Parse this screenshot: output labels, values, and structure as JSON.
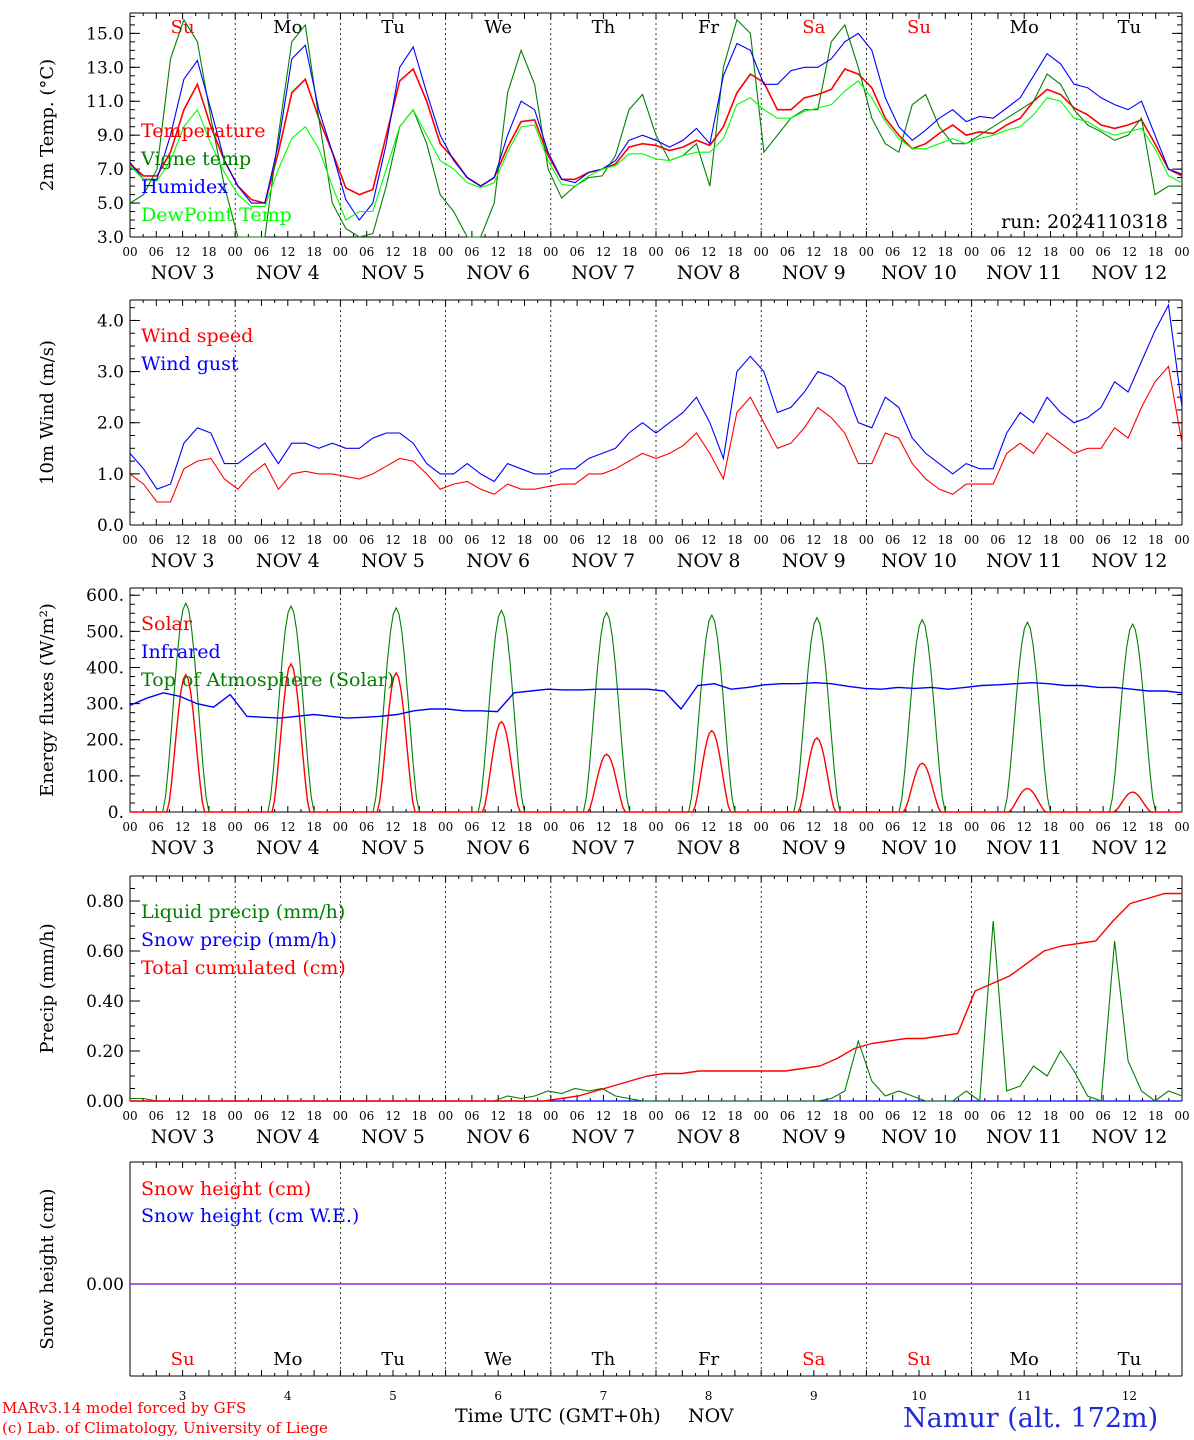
{
  "chart_data": [
    {
      "type": "line",
      "ylabel": "2m Temp. (°C)",
      "ylim": [
        3.0,
        16.2
      ],
      "yticks": [
        "3.0",
        "5.0",
        "7.0",
        "9.0",
        "11.0",
        "13.0",
        "15.0"
      ],
      "run_label": "run: 2024110318",
      "day_names": [
        "Su",
        "Mo",
        "Tu",
        "We",
        "Th",
        "Fr",
        "Sa",
        "Su",
        "Mo",
        "Tu"
      ],
      "series": [
        {
          "name": "Temperature",
          "color": "#ff0000",
          "values": [
            7.3,
            6.6,
            6.6,
            8.0,
            10.5,
            12.0,
            9.5,
            7.5,
            6.0,
            5.2,
            5.0,
            8.0,
            11.5,
            12.3,
            10.0,
            8.0,
            5.9,
            5.5,
            5.8,
            9.0,
            12.2,
            12.9,
            11.0,
            8.5,
            7.6,
            6.5,
            6.0,
            6.5,
            8.3,
            9.8,
            9.9,
            7.8,
            6.4,
            6.4,
            6.8,
            7.0,
            7.3,
            8.3,
            8.5,
            8.4,
            8.1,
            8.3,
            8.7,
            8.4,
            9.5,
            11.5,
            12.6,
            12.1,
            10.5,
            10.5,
            11.2,
            11.4,
            11.7,
            12.9,
            12.6,
            11.8,
            10.0,
            9.0,
            8.2,
            8.5,
            9.1,
            9.6,
            9.0,
            9.2,
            9.1,
            9.6,
            10.0,
            11.0,
            11.7,
            11.4,
            10.6,
            10.2,
            9.6,
            9.4,
            9.6,
            9.9,
            8.5,
            7.0,
            6.6
          ]
        },
        {
          "name": "Vigne temp",
          "color": "#008000",
          "values": [
            5.0,
            5.5,
            7.0,
            13.5,
            15.8,
            14.5,
            10.0,
            6.0,
            2.8,
            2.5,
            2.5,
            9.0,
            14.5,
            15.5,
            10.0,
            5.0,
            3.5,
            2.0,
            3.2,
            6.0,
            9.5,
            10.5,
            8.5,
            5.5,
            4.5,
            3.0,
            2.5,
            5.0,
            11.5,
            14.0,
            12.0,
            7.0,
            5.3,
            6.0,
            6.5,
            6.6,
            7.8,
            10.5,
            11.4,
            9.0,
            7.5,
            7.8,
            8.5,
            6.0,
            13.0,
            15.8,
            15.0,
            8.0,
            9.0,
            10.0,
            10.5,
            10.5,
            14.5,
            15.5,
            13.0,
            10.0,
            8.5,
            8.0,
            10.8,
            11.4,
            9.5,
            8.5,
            8.5,
            9.0,
            9.5,
            10.0,
            10.5,
            11.0,
            12.6,
            12.0,
            10.5,
            9.6,
            9.2,
            8.7,
            9.0,
            10.0,
            5.5,
            6.0,
            6.0
          ]
        },
        {
          "name": "Humidex",
          "color": "#0000ff",
          "values": [
            7.4,
            6.4,
            6.4,
            9.0,
            12.3,
            13.4,
            10.5,
            7.5,
            6.0,
            5.0,
            5.0,
            8.5,
            13.5,
            14.3,
            10.5,
            8.0,
            5.2,
            4.0,
            5.0,
            8.5,
            13.0,
            14.2,
            11.5,
            9.0,
            7.5,
            6.5,
            6.0,
            6.5,
            9.0,
            11.0,
            10.5,
            8.0,
            6.4,
            6.2,
            6.8,
            7.0,
            7.5,
            8.7,
            9.0,
            8.7,
            8.3,
            8.7,
            9.4,
            8.5,
            12.5,
            14.4,
            14.0,
            12.0,
            12.0,
            12.8,
            13.0,
            13.0,
            13.5,
            14.5,
            15.0,
            14.0,
            11.2,
            9.5,
            8.7,
            9.3,
            10.0,
            10.5,
            9.8,
            10.1,
            10.0,
            10.6,
            11.2,
            12.5,
            13.8,
            13.2,
            12.0,
            11.8,
            11.2,
            10.8,
            10.5,
            11.0,
            9.0,
            7.0,
            6.7
          ]
        },
        {
          "name": "DewPoint Temp",
          "color": "#00ff00",
          "values": [
            7.2,
            6.4,
            6.3,
            7.5,
            9.5,
            10.5,
            8.5,
            6.8,
            5.5,
            4.8,
            4.8,
            7.0,
            8.8,
            9.5,
            8.2,
            6.0,
            4.0,
            4.5,
            4.5,
            7.0,
            9.5,
            10.5,
            9.0,
            7.5,
            7.0,
            6.2,
            5.9,
            6.2,
            8.0,
            9.5,
            9.6,
            7.5,
            6.1,
            6.0,
            6.6,
            7.0,
            7.2,
            7.9,
            7.9,
            7.6,
            7.5,
            7.8,
            8.0,
            8.0,
            8.8,
            10.8,
            11.2,
            10.5,
            10.0,
            10.0,
            10.4,
            10.6,
            10.8,
            11.6,
            12.2,
            11.2,
            9.8,
            8.8,
            8.2,
            8.2,
            8.5,
            8.8,
            8.5,
            8.8,
            9.0,
            9.3,
            9.5,
            10.2,
            11.2,
            11.0,
            10.0,
            9.8,
            9.3,
            9.0,
            9.2,
            9.4,
            8.2,
            6.6,
            6.2
          ]
        }
      ]
    },
    {
      "type": "line",
      "ylabel": "10m Wind (m/s)",
      "ylim": [
        0.0,
        4.4
      ],
      "yticks": [
        "0.0",
        "1.0",
        "2.0",
        "3.0",
        "4.0"
      ],
      "series": [
        {
          "name": "Wind speed",
          "color": "#ff0000",
          "values": [
            1.0,
            0.8,
            0.45,
            0.45,
            1.1,
            1.25,
            1.3,
            0.9,
            0.7,
            1.0,
            1.2,
            0.7,
            1.0,
            1.05,
            1.0,
            1.0,
            0.95,
            0.9,
            1.0,
            1.15,
            1.3,
            1.25,
            1.0,
            0.7,
            0.8,
            0.85,
            0.7,
            0.6,
            0.8,
            0.7,
            0.7,
            0.75,
            0.8,
            0.8,
            1.0,
            1.0,
            1.1,
            1.25,
            1.4,
            1.3,
            1.4,
            1.55,
            1.8,
            1.4,
            0.9,
            2.2,
            2.5,
            2.0,
            1.5,
            1.6,
            1.9,
            2.3,
            2.1,
            1.8,
            1.2,
            1.2,
            1.8,
            1.7,
            1.2,
            0.9,
            0.7,
            0.6,
            0.8,
            0.8,
            0.8,
            1.4,
            1.6,
            1.4,
            1.8,
            1.6,
            1.4,
            1.5,
            1.5,
            1.9,
            1.7,
            2.3,
            2.8,
            3.1,
            1.6
          ]
        },
        {
          "name": "Wind gust",
          "color": "#0000ff",
          "values": [
            1.4,
            1.1,
            0.7,
            0.8,
            1.6,
            1.9,
            1.8,
            1.2,
            1.2,
            1.4,
            1.6,
            1.2,
            1.6,
            1.6,
            1.5,
            1.6,
            1.5,
            1.5,
            1.7,
            1.8,
            1.8,
            1.6,
            1.2,
            1.0,
            1.0,
            1.2,
            1.0,
            0.85,
            1.2,
            1.1,
            1.0,
            1.0,
            1.1,
            1.1,
            1.3,
            1.4,
            1.5,
            1.8,
            2.0,
            1.8,
            2.0,
            2.2,
            2.5,
            2.0,
            1.3,
            3.0,
            3.3,
            3.0,
            2.2,
            2.3,
            2.6,
            3.0,
            2.9,
            2.7,
            2.0,
            1.9,
            2.5,
            2.3,
            1.7,
            1.4,
            1.2,
            1.0,
            1.2,
            1.1,
            1.1,
            1.8,
            2.2,
            2.0,
            2.5,
            2.2,
            2.0,
            2.1,
            2.3,
            2.8,
            2.6,
            3.2,
            3.8,
            4.3,
            2.3
          ]
        }
      ]
    },
    {
      "type": "line",
      "ylabel": "Energy fluxes (W/m²)",
      "ylim": [
        0,
        620
      ],
      "yticks": [
        "0.",
        "100.",
        "200.",
        "300.",
        "400.",
        "500.",
        "600."
      ],
      "series": [
        {
          "name": "Solar",
          "color": "#ff0000",
          "peaks": [
            380,
            410,
            385,
            250,
            160,
            225,
            205,
            135,
            65,
            55
          ]
        },
        {
          "name": "Infrared",
          "color": "#0000ff",
          "values": [
            295,
            315,
            330,
            320,
            300,
            290,
            325,
            265,
            262,
            260,
            265,
            270,
            265,
            260,
            262,
            265,
            270,
            280,
            285,
            285,
            280,
            280,
            278,
            330,
            335,
            340,
            338,
            338,
            340,
            340,
            340,
            340,
            335,
            285,
            350,
            355,
            340,
            345,
            352,
            355,
            355,
            358,
            355,
            348,
            342,
            340,
            345,
            342,
            345,
            340,
            345,
            350,
            352,
            355,
            358,
            355,
            350,
            350,
            345,
            345,
            340,
            335,
            335,
            330
          ]
        },
        {
          "name": "Top of Atmosphere (Solar)",
          "color": "#008000",
          "peaks": [
            578,
            570,
            565,
            558,
            552,
            545,
            538,
            532,
            525,
            520
          ]
        }
      ]
    },
    {
      "type": "line",
      "ylabel": "Precip (mm/h)",
      "ylim": [
        0,
        0.9
      ],
      "yticks": [
        "0.00",
        "0.20",
        "0.40",
        "0.60",
        "0.80"
      ],
      "series": [
        {
          "name": "Liquid precip (mm/h)",
          "color": "#008000",
          "values": [
            0.01,
            0.01,
            0.0,
            0.0,
            0.0,
            0.0,
            0.0,
            0.0,
            0.0,
            0.0,
            0.0,
            0.0,
            0.0,
            0.0,
            0.0,
            0.0,
            0.0,
            0.0,
            0.0,
            0.0,
            0.0,
            0.0,
            0.0,
            0.0,
            0.0,
            0.0,
            0.0,
            0.0,
            0.02,
            0.01,
            0.02,
            0.04,
            0.03,
            0.05,
            0.04,
            0.05,
            0.02,
            0.01,
            0.0,
            0.0,
            0.0,
            0.0,
            0.0,
            0.0,
            0.0,
            0.0,
            0.0,
            0.0,
            0.0,
            0.0,
            0.0,
            0.0,
            0.01,
            0.04,
            0.24,
            0.08,
            0.02,
            0.04,
            0.02,
            0.0,
            0.0,
            0.0,
            0.04,
            0.0,
            0.72,
            0.04,
            0.06,
            0.14,
            0.1,
            0.2,
            0.12,
            0.02,
            0.0,
            0.64,
            0.16,
            0.04,
            0.0,
            0.04,
            0.02
          ]
        },
        {
          "name": "Snow precip (mm/h)",
          "color": "#0000ff",
          "values": [
            0.0,
            0.0
          ]
        },
        {
          "name": "Total cumulated (cm)",
          "color": "#ff0000",
          "values": [
            0.0,
            0.0,
            0.0,
            0.0,
            0.0,
            0.0,
            0.0,
            0.0,
            0.0,
            0.0,
            0.0,
            0.0,
            0.0,
            0.0,
            0.0,
            0.0,
            0.0,
            0.0,
            0.0,
            0.0,
            0.0,
            0.0,
            0.0,
            0.0,
            0.0,
            0.01,
            0.02,
            0.04,
            0.06,
            0.08,
            0.1,
            0.11,
            0.11,
            0.12,
            0.12,
            0.12,
            0.12,
            0.12,
            0.12,
            0.13,
            0.14,
            0.17,
            0.21,
            0.23,
            0.24,
            0.25,
            0.25,
            0.26,
            0.27,
            0.44,
            0.47,
            0.5,
            0.55,
            0.6,
            0.62,
            0.63,
            0.64,
            0.72,
            0.79,
            0.81,
            0.83,
            0.83
          ]
        }
      ]
    },
    {
      "type": "line",
      "ylabel": "Snow height (cm)",
      "yticks": [
        "0.00"
      ],
      "series": [
        {
          "name": "Snow height (cm)",
          "color": "#ff0000",
          "values": [
            0.0,
            0.0
          ]
        },
        {
          "name": "Snow height (cm W.E.)",
          "color": "#0000ff",
          "values": [
            0.0,
            0.0
          ]
        }
      ],
      "day_names": [
        "Su",
        "Mo",
        "Tu",
        "We",
        "Th",
        "Fr",
        "Sa",
        "Su",
        "Mo",
        "Tu"
      ],
      "day_numbers": [
        "3",
        "4",
        "5",
        "6",
        "7",
        "8",
        "9",
        "10",
        "11",
        "12"
      ]
    }
  ],
  "axis": {
    "hour_labels": [
      "00",
      "06",
      "12",
      "18"
    ],
    "date_labels": [
      "NOV  3",
      "NOV  4",
      "NOV  5",
      "NOV  6",
      "NOV  7",
      "NOV  8",
      "NOV  9",
      "NOV 10",
      "NOV 11",
      "NOV 12"
    ],
    "xlabel": "Time UTC (GMT+0h)",
    "month": "NOV"
  },
  "colors": {
    "weekend": "#ff0000",
    "weekday": "#000000"
  },
  "footer": {
    "credit_line1": "MARv3.14 model forced by GFS",
    "credit_line2": "(c) Lab. of Climatology, University of Liege",
    "location": "Namur (alt. 172m)"
  }
}
